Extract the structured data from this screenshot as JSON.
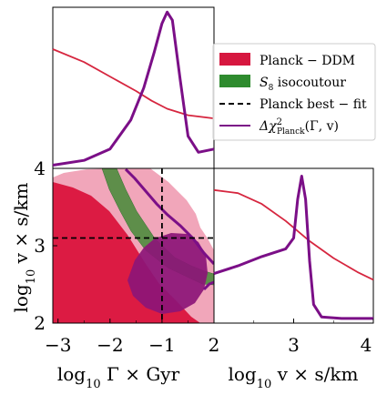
{
  "chart_data": [
    {
      "panel": "top-left",
      "type": "line",
      "series": [
        {
          "color": "#d6263f",
          "x": [
            -3.1,
            -2.5,
            -2.0,
            -1.5,
            -1.2,
            -0.9,
            -0.5,
            0.0
          ],
          "values": [
            0.74,
            0.66,
            0.57,
            0.48,
            0.42,
            0.37,
            0.33,
            0.31
          ]
        },
        {
          "color": "#7b0f87",
          "x": [
            -3.1,
            -2.5,
            -2.0,
            -1.6,
            -1.35,
            -1.15,
            -1.0,
            -0.9,
            -0.8,
            -0.65,
            -0.5,
            -0.3,
            0.0
          ],
          "values": [
            0.02,
            0.05,
            0.12,
            0.3,
            0.5,
            0.72,
            0.9,
            0.97,
            0.92,
            0.55,
            0.2,
            0.1,
            0.12
          ]
        }
      ]
    },
    {
      "panel": "bottom-left",
      "type": "contour",
      "xlabel_parts": {
        "pre": "log",
        "sub": "10",
        "post": " Γ × Gyr"
      },
      "ylabel_parts": {
        "pre": "log",
        "sub": "10",
        "post": " v × s/km"
      },
      "xticks": [
        "−3",
        "−2",
        "−1",
        "0"
      ],
      "yticks": [
        "2",
        "3",
        "4"
      ],
      "xlim": [
        -3.1,
        0
      ],
      "ylim": [
        2,
        4
      ],
      "best_fit": {
        "x": -1.0,
        "y": 3.1
      }
    },
    {
      "panel": "bottom-right",
      "type": "line",
      "xlabel_parts": {
        "pre": "log",
        "sub": "10",
        "post": " v × s/km"
      },
      "xticks": [
        "2",
        "3",
        "4"
      ],
      "xlim": [
        2,
        4
      ],
      "series": [
        {
          "color": "#d6263f",
          "x": [
            2.0,
            2.3,
            2.6,
            2.9,
            3.2,
            3.5,
            3.8,
            4.0
          ],
          "values": [
            0.86,
            0.84,
            0.77,
            0.66,
            0.53,
            0.42,
            0.33,
            0.28
          ]
        },
        {
          "color": "#7b0f87",
          "x": [
            2.0,
            2.3,
            2.6,
            2.9,
            3.0,
            3.05,
            3.1,
            3.15,
            3.2,
            3.25,
            3.35,
            3.6,
            4.0
          ],
          "values": [
            0.32,
            0.37,
            0.43,
            0.48,
            0.55,
            0.8,
            0.95,
            0.8,
            0.4,
            0.12,
            0.04,
            0.03,
            0.03
          ]
        }
      ]
    }
  ],
  "legend": {
    "items": [
      {
        "label": "Planck − DDM",
        "color": "#d6173f",
        "kind": "patch"
      },
      {
        "label_math": "S",
        "label_sub": "8",
        "label_rest": " isocoutour",
        "color": "#2e8b2e",
        "kind": "patch"
      },
      {
        "label": "Planck best − fit",
        "color": "#000000",
        "kind": "dashed"
      },
      {
        "label_math": "Δχ",
        "label_sup": "2",
        "label_sub": "Planck",
        "label_rest": "(Γ, v)",
        "color": "#7b0f87",
        "kind": "line"
      }
    ]
  }
}
